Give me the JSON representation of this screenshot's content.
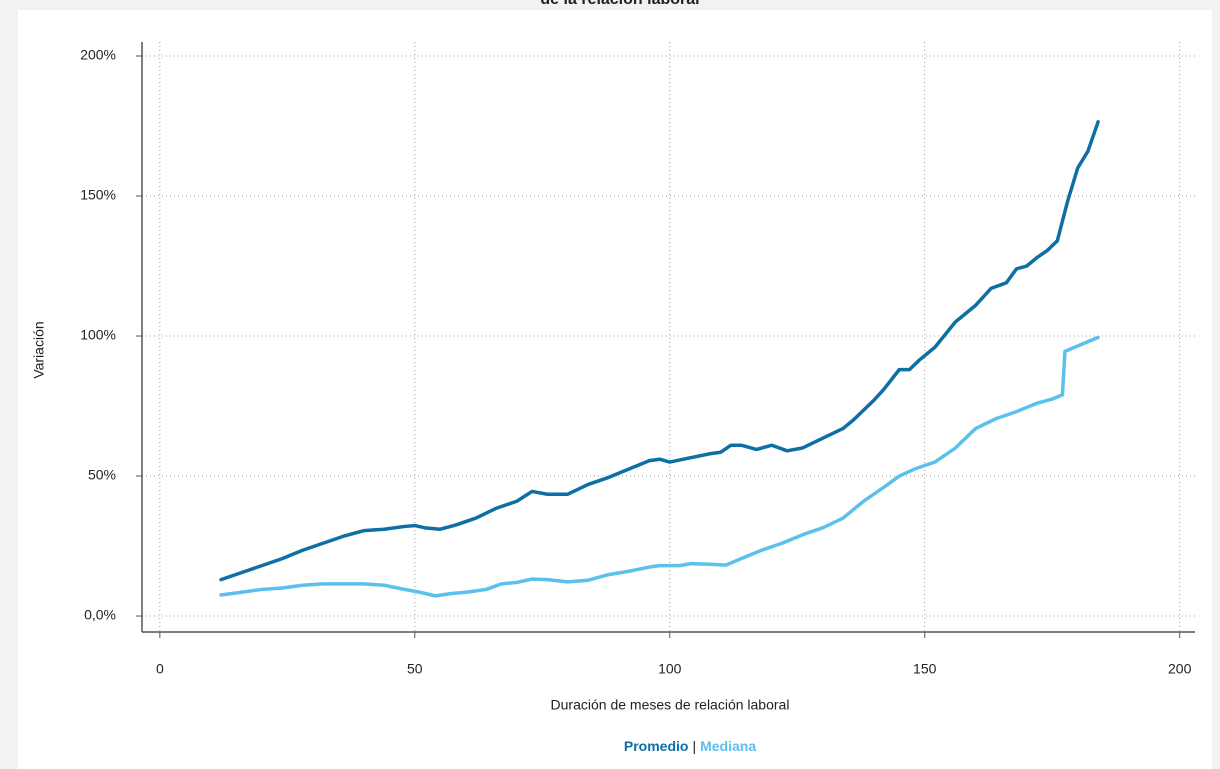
{
  "chart_data": {
    "type": "line",
    "title": "de la relación laboral",
    "x_label": "Duración de meses de relación laboral",
    "y_label": "Variación",
    "xlim": [
      -3.5,
      203
    ],
    "ylim": [
      -5.7,
      205
    ],
    "xticks": [
      0,
      50,
      100,
      150,
      200
    ],
    "yticks": [
      {
        "value": 0,
        "label": "0,0%"
      },
      {
        "value": 50,
        "label": "50%"
      },
      {
        "value": 100,
        "label": "100%"
      },
      {
        "value": 150,
        "label": "150%"
      },
      {
        "value": 200,
        "label": "200%"
      }
    ],
    "grid": true,
    "legend_separator": "|",
    "series": [
      {
        "name": "Promedio",
        "color": "#0d6fa3",
        "x": [
          12,
          16,
          20,
          24,
          28,
          32,
          36,
          40,
          44,
          48,
          50,
          52,
          55,
          58,
          62,
          66,
          70,
          73,
          76,
          80,
          84,
          88,
          92,
          96,
          98,
          100,
          104,
          108,
          110,
          112,
          114,
          117,
          120,
          123,
          126,
          130,
          134,
          136,
          140,
          142,
          145,
          147,
          149,
          152,
          156,
          160,
          163,
          166,
          168,
          170,
          172,
          174,
          176,
          178,
          180,
          182,
          184
        ],
        "values": [
          13,
          15.5,
          18,
          20.5,
          23.5,
          26,
          28.5,
          30.5,
          31,
          32,
          32.3,
          31.5,
          31,
          32.5,
          35,
          38.5,
          41,
          44.5,
          43.5,
          43.5,
          47,
          49.5,
          52.5,
          55.5,
          56,
          55,
          56.5,
          58,
          58.5,
          61,
          61,
          59.5,
          61,
          59,
          60,
          63.5,
          67,
          70,
          77,
          81,
          88,
          88,
          91.5,
          96,
          105,
          111,
          117,
          119,
          124,
          125,
          128,
          130.5,
          134,
          148,
          160,
          166,
          176.5
        ]
      },
      {
        "name": "Mediana",
        "color": "#5bc0eb",
        "x": [
          12,
          16,
          20,
          24,
          28,
          32,
          36,
          40,
          44,
          48,
          51,
          54,
          57,
          60,
          64,
          67,
          70,
          73,
          76,
          80,
          84,
          88,
          92,
          96,
          98,
          102,
          104,
          108,
          111,
          114,
          118,
          122,
          126,
          130,
          134,
          138,
          142,
          145,
          148,
          152,
          156,
          160,
          164,
          168,
          172,
          175,
          177,
          177.5,
          184
        ],
        "values": [
          7.5,
          8.5,
          9.5,
          10,
          11,
          11.5,
          11.5,
          11.5,
          11,
          9.5,
          8.5,
          7.2,
          8,
          8.5,
          9.5,
          11.5,
          12,
          13.2,
          13,
          12.2,
          12.8,
          14.8,
          16,
          17.5,
          18,
          18,
          18.7,
          18.5,
          18.2,
          20.5,
          23.5,
          26,
          29,
          31.5,
          35,
          41,
          46,
          50,
          52.5,
          55,
          60,
          67,
          70.5,
          73,
          76,
          77.5,
          79,
          94.5,
          99.5
        ]
      }
    ]
  }
}
